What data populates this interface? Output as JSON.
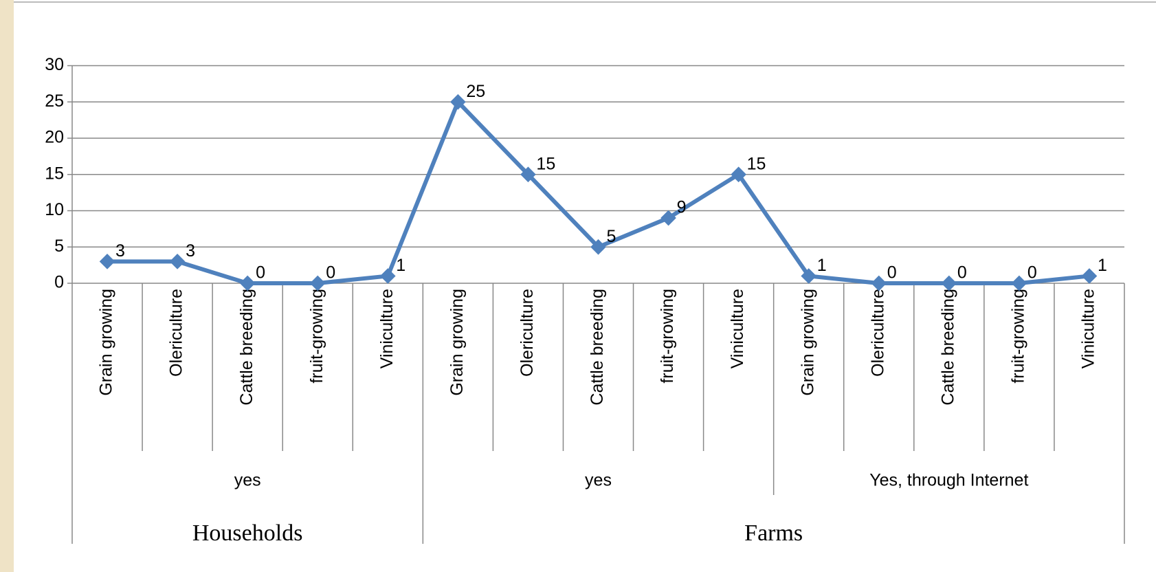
{
  "chart_data": {
    "type": "line",
    "category_groups": [
      {
        "name": "Households",
        "groups": [
          {
            "name": "yes",
            "categories": [
              "Grain growing",
              "Olericulture",
              "Cattle breeding",
              "fruit-growing",
              "Viniculture"
            ]
          }
        ]
      },
      {
        "name": "Farms",
        "groups": [
          {
            "name": "yes",
            "categories": [
              "Grain growing",
              "Olericulture",
              "Cattle breeding",
              "fruit-growing",
              "Viniculture"
            ]
          },
          {
            "name": "Yes, through Internet",
            "categories": [
              "Grain growing",
              "Olericulture",
              "Cattle breeding",
              "fruit-growing",
              "Viniculture"
            ]
          }
        ]
      }
    ],
    "values": [
      3,
      3,
      0,
      0,
      1,
      25,
      15,
      5,
      9,
      15,
      1,
      0,
      0,
      0,
      1
    ],
    "color": "#4f81bd",
    "ylim": [
      0,
      30
    ],
    "yticks": [
      0,
      5,
      10,
      15,
      20,
      25,
      30
    ],
    "grid": true
  }
}
